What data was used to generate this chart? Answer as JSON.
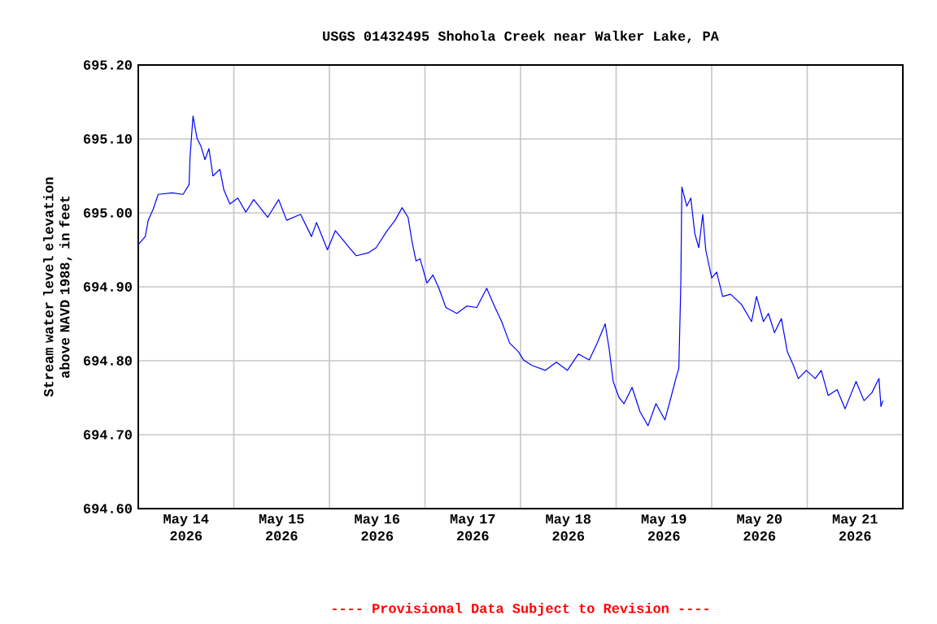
{
  "chart_data": {
    "type": "line",
    "title": "USGS 01432495 Shohola Creek near Walker Lake, PA",
    "ylabel": "Stream water level elevation above NAVD 1988, in feet",
    "annotations": [
      "---- Provisional Data Subject to Revision ----"
    ],
    "grid": true,
    "xlim": [
      "2026-05-14T00:00",
      "2026-05-22T00:00"
    ],
    "xticks": [
      {
        "value": "2026-05-14T12:00",
        "label": "May 14 2026"
      },
      {
        "value": "2026-05-15T12:00",
        "label": "May 15 2026"
      },
      {
        "value": "2026-05-16T12:00",
        "label": "May 16 2026"
      },
      {
        "value": "2026-05-17T12:00",
        "label": "May 17 2026"
      },
      {
        "value": "2026-05-18T12:00",
        "label": "May 18 2026"
      },
      {
        "value": "2026-05-19T12:00",
        "label": "May 19 2026"
      },
      {
        "value": "2026-05-20T12:00",
        "label": "May 20 2026"
      },
      {
        "value": "2026-05-21T12:00",
        "label": "May 21 2026"
      },
      {
        "value": "2026-05-15T00:00",
        "label": null
      },
      {
        "value": "2026-05-16T00:00",
        "label": null
      },
      {
        "value": "2026-05-17T00:00",
        "label": null
      },
      {
        "value": "2026-05-18T00:00",
        "label": null
      },
      {
        "value": "2026-05-19T00:00",
        "label": null
      },
      {
        "value": "2026-05-20T00:00",
        "label": null
      },
      {
        "value": "2026-05-21T00:00",
        "label": null
      }
    ],
    "ylim": [
      694.6,
      695.2
    ],
    "yticks": [
      {
        "value": 694.6,
        "label": "694.60"
      },
      {
        "value": 694.7,
        "label": "694.70"
      },
      {
        "value": 694.8,
        "label": "694.80"
      },
      {
        "value": 694.9,
        "label": "694.90"
      },
      {
        "value": 695.0,
        "label": "695.00"
      },
      {
        "value": 695.1,
        "label": "695.10"
      },
      {
        "value": 695.2,
        "label": "695.20"
      }
    ],
    "series": [
      {
        "color": "#0000ff",
        "x": [
          "2026-05-14T00:00",
          "2026-05-14T01:45",
          "2026-05-14T02:30",
          "2026-05-14T03:45",
          "2026-05-14T05:00",
          "2026-05-14T08:30",
          "2026-05-14T11:15",
          "2026-05-14T12:45",
          "2026-05-14T13:00",
          "2026-05-14T13:45",
          "2026-05-14T14:45",
          "2026-05-14T15:45",
          "2026-05-14T16:45",
          "2026-05-14T17:45",
          "2026-05-14T18:45",
          "2026-05-14T20:30",
          "2026-05-14T21:30",
          "2026-05-14T23:00",
          "2026-05-15T01:00",
          "2026-05-15T03:00",
          "2026-05-15T05:00",
          "2026-05-15T08:30",
          "2026-05-15T11:15",
          "2026-05-15T13:15",
          "2026-05-15T16:45",
          "2026-05-15T19:30",
          "2026-05-15T20:45",
          "2026-05-15T23:30",
          "2026-05-16T01:30",
          "2026-05-16T05:00",
          "2026-05-16T06:45",
          "2026-05-16T09:45",
          "2026-05-16T11:45",
          "2026-05-16T14:30",
          "2026-05-16T16:30",
          "2026-05-16T18:15",
          "2026-05-16T19:45",
          "2026-05-16T20:45",
          "2026-05-16T21:45",
          "2026-05-16T22:45",
          "2026-05-17T00:30",
          "2026-05-17T02:00",
          "2026-05-17T03:30",
          "2026-05-17T05:15",
          "2026-05-17T08:00",
          "2026-05-17T10:30",
          "2026-05-17T13:00",
          "2026-05-17T15:30",
          "2026-05-17T17:15",
          "2026-05-17T19:15",
          "2026-05-17T21:15",
          "2026-05-17T23:30",
          "2026-05-18T00:45",
          "2026-05-18T02:45",
          "2026-05-18T06:15",
          "2026-05-18T09:00",
          "2026-05-18T11:45",
          "2026-05-18T14:30",
          "2026-05-18T17:15",
          "2026-05-18T19:15",
          "2026-05-18T21:15",
          "2026-05-18T22:15",
          "2026-05-18T23:15",
          "2026-05-19T00:45",
          "2026-05-19T02:00",
          "2026-05-19T04:00",
          "2026-05-19T06:00",
          "2026-05-19T08:00",
          "2026-05-19T10:00",
          "2026-05-19T12:15",
          "2026-05-19T13:45",
          "2026-05-19T15:00",
          "2026-05-19T15:45",
          "2026-05-19T16:15",
          "2026-05-19T16:30",
          "2026-05-19T17:45",
          "2026-05-19T18:45",
          "2026-05-19T19:45",
          "2026-05-19T20:45",
          "2026-05-19T21:45",
          "2026-05-19T22:30",
          "2026-05-20T00:00",
          "2026-05-20T01:15",
          "2026-05-20T02:45",
          "2026-05-20T04:45",
          "2026-05-20T07:30",
          "2026-05-20T10:00",
          "2026-05-20T11:15",
          "2026-05-20T13:00",
          "2026-05-20T14:15",
          "2026-05-20T15:45",
          "2026-05-20T17:30",
          "2026-05-20T19:00",
          "2026-05-20T20:30",
          "2026-05-20T21:45",
          "2026-05-20T23:45",
          "2026-05-21T02:00",
          "2026-05-21T03:30",
          "2026-05-21T05:15",
          "2026-05-21T07:30",
          "2026-05-21T09:30",
          "2026-05-21T12:15",
          "2026-05-21T14:15",
          "2026-05-21T16:15",
          "2026-05-21T18:00",
          "2026-05-21T18:30",
          "2026-05-21T19:00"
        ],
        "values": [
          694.957,
          694.968,
          694.99,
          695.005,
          695.025,
          695.027,
          695.025,
          695.038,
          695.076,
          695.131,
          695.101,
          695.09,
          695.072,
          695.087,
          695.05,
          695.059,
          695.031,
          695.012,
          695.02,
          695.001,
          695.018,
          694.994,
          695.018,
          694.99,
          694.998,
          694.968,
          694.987,
          694.95,
          694.976,
          694.953,
          694.942,
          694.946,
          694.953,
          694.976,
          694.99,
          695.007,
          694.994,
          694.961,
          694.935,
          694.938,
          694.905,
          694.916,
          694.898,
          694.872,
          694.864,
          694.874,
          694.872,
          694.898,
          694.876,
          694.853,
          694.824,
          694.812,
          694.801,
          694.794,
          694.787,
          694.798,
          694.787,
          694.809,
          694.801,
          694.824,
          694.85,
          694.816,
          694.772,
          694.75,
          694.742,
          694.764,
          694.731,
          694.712,
          694.742,
          694.72,
          694.75,
          694.776,
          694.79,
          694.905,
          695.035,
          695.009,
          695.02,
          694.972,
          694.953,
          694.998,
          694.95,
          694.912,
          694.92,
          694.887,
          694.89,
          694.876,
          694.853,
          694.887,
          694.853,
          694.864,
          694.838,
          694.857,
          694.812,
          694.794,
          694.776,
          694.787,
          694.776,
          694.787,
          694.753,
          694.761,
          694.735,
          694.772,
          694.746,
          694.757,
          694.776,
          694.738,
          694.746
        ]
      }
    ]
  }
}
